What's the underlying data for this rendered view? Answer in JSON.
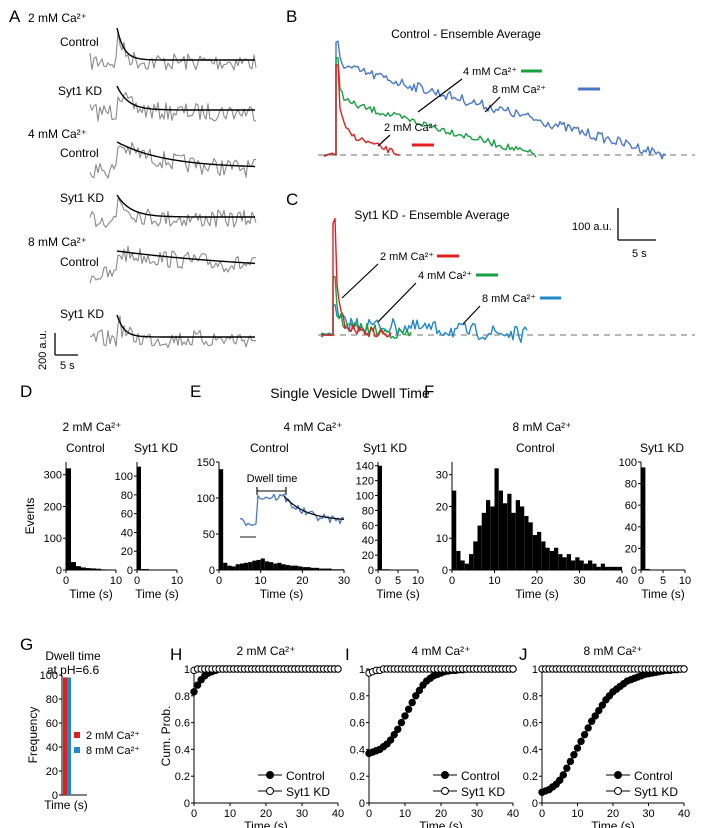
{
  "colors": {
    "trace": "#8a8a8a",
    "fit": "#000000",
    "ca2": "#e02020",
    "ca4": "#18a040",
    "ca8": "#4a78c8",
    "ca8_kd": "#1f88c8",
    "baseline": "#8c8c8c",
    "bar": "#000000"
  },
  "panel_labels": [
    "A",
    "B",
    "C",
    "D",
    "E",
    "F",
    "G",
    "H",
    "I",
    "J"
  ],
  "panel_a": {
    "groups": [
      {
        "condition": "2 mM Ca²⁺",
        "rows": [
          "Control",
          "Syt1 KD"
        ]
      },
      {
        "condition": "4 mM Ca²⁺",
        "rows": [
          "Control",
          "Syt1 KD"
        ]
      },
      {
        "condition": "8 mM Ca²⁺",
        "rows": [
          "Control",
          "Syt1 KD"
        ]
      }
    ],
    "scale_amp": "200 a.u.",
    "scale_time": "5 s"
  },
  "panel_b": {
    "title": "Control - Ensemble Average",
    "labels": {
      "ca2": "2 mM Ca²⁺",
      "ca4": "4 mM Ca²⁺",
      "ca8": "8 mM Ca²⁺"
    }
  },
  "panel_c": {
    "title": "Syt1 KD - Ensemble Average",
    "labels": {
      "ca2": "2 mM Ca²⁺",
      "ca4": "4 mM Ca²⁺",
      "ca8": "8 mM Ca²⁺"
    },
    "scale_amp": "100 a.u.",
    "scale_time": "5 s"
  },
  "section_title": "Single Vesicle Dwell Time",
  "conditions": {
    "ca2": "2 mM Ca²⁺",
    "ca4": "4 mM Ca²⁺",
    "ca8": "8 mM Ca²⁺"
  },
  "groups": {
    "control": "Control",
    "kd": "Syt1 KD"
  },
  "axis": {
    "events": "Events",
    "time": "Time (s)",
    "frequency": "Frequency",
    "cum_prob": "Cum. Prob."
  },
  "inset_label": "Dwell time",
  "panel_g": {
    "title_line1": "Dwell time",
    "title_line2": "at pH=6.6"
  },
  "chart_data": [
    {
      "id": "D-control",
      "type": "bar",
      "title": "2 mM Ca²⁺ Control",
      "xlabel": "Time (s)",
      "ylabel": "Events",
      "xlim": [
        0,
        10
      ],
      "ylim": [
        0,
        340
      ],
      "xticks": [
        0,
        10
      ],
      "yticks": [
        0,
        100,
        200,
        300
      ],
      "bin_width": 1,
      "bins": [
        0,
        1,
        2,
        3,
        4,
        5,
        6,
        7,
        8,
        9
      ],
      "values": [
        320,
        25,
        12,
        8,
        6,
        5,
        4,
        2,
        1,
        1
      ]
    },
    {
      "id": "D-kd",
      "type": "bar",
      "title": "2 mM Ca²⁺ Syt1 KD",
      "xlabel": "Time (s)",
      "ylabel": "",
      "xlim": [
        0,
        10
      ],
      "ylim": [
        0,
        115
      ],
      "xticks": [
        0,
        10
      ],
      "yticks": [
        0,
        20,
        40,
        60,
        80,
        100
      ],
      "bin_width": 1,
      "bins": [
        0,
        1,
        2,
        3
      ],
      "values": [
        110,
        1,
        1,
        0
      ]
    },
    {
      "id": "E-control",
      "type": "bar",
      "title": "4 mM Ca²⁺ Control",
      "xlabel": "Time (s)",
      "ylabel": "",
      "xlim": [
        0,
        30
      ],
      "ylim": [
        0,
        150
      ],
      "xticks": [
        0,
        10,
        20,
        30
      ],
      "yticks": [
        0,
        50,
        100,
        150
      ],
      "bin_width": 1,
      "bins": [
        0,
        1,
        2,
        3,
        4,
        5,
        6,
        7,
        8,
        9,
        10,
        11,
        12,
        13,
        14,
        15,
        16,
        17,
        18,
        19,
        20,
        21,
        22,
        23,
        24,
        25,
        26,
        27,
        28,
        29
      ],
      "values": [
        140,
        10,
        6,
        5,
        8,
        9,
        10,
        11,
        13,
        14,
        16,
        12,
        11,
        9,
        10,
        8,
        7,
        6,
        6,
        5,
        4,
        4,
        3,
        3,
        2,
        2,
        2,
        1,
        1,
        1
      ]
    },
    {
      "id": "E-kd",
      "type": "bar",
      "title": "4 mM Ca²⁺ Syt1 KD",
      "xlabel": "Time (s)",
      "ylabel": "",
      "xlim": [
        0,
        10
      ],
      "ylim": [
        0,
        145
      ],
      "xticks": [
        0,
        5,
        10
      ],
      "yticks": [
        0,
        20,
        40,
        60,
        80,
        100,
        120,
        140
      ],
      "bin_width": 1,
      "bins": [
        0,
        1,
        2,
        3
      ],
      "values": [
        140,
        1,
        1,
        0
      ]
    },
    {
      "id": "F-control",
      "type": "bar",
      "title": "8 mM Ca²⁺ Control",
      "xlabel": "Time (s)",
      "ylabel": "",
      "xlim": [
        0,
        40
      ],
      "ylim": [
        0,
        34
      ],
      "xticks": [
        0,
        10,
        20,
        30,
        40
      ],
      "yticks": [
        0,
        10,
        20,
        30
      ],
      "bin_width": 1,
      "bins": [
        0,
        1,
        2,
        3,
        4,
        5,
        6,
        7,
        8,
        9,
        10,
        11,
        12,
        13,
        14,
        15,
        16,
        17,
        18,
        19,
        20,
        21,
        22,
        23,
        24,
        25,
        26,
        27,
        28,
        29,
        30,
        31,
        32,
        33,
        34,
        35,
        36,
        37,
        38,
        39
      ],
      "values": [
        25,
        6,
        3,
        2,
        5,
        9,
        14,
        18,
        22,
        20,
        32,
        25,
        21,
        24,
        18,
        22,
        20,
        17,
        15,
        11,
        12,
        9,
        7,
        6,
        7,
        5,
        4,
        5,
        3,
        4,
        3,
        2,
        3,
        2,
        1,
        2,
        1,
        1,
        1,
        1
      ]
    },
    {
      "id": "F-kd",
      "type": "bar",
      "title": "8 mM Ca²⁺ Syt1 KD",
      "xlabel": "Time (s)",
      "ylabel": "",
      "xlim": [
        0,
        10
      ],
      "ylim": [
        0,
        100
      ],
      "xticks": [
        0,
        5,
        10
      ],
      "yticks": [
        0,
        20,
        40,
        60,
        80,
        100
      ],
      "bin_width": 1,
      "bins": [
        0,
        1,
        2,
        3
      ],
      "values": [
        95,
        1,
        0,
        0
      ]
    },
    {
      "id": "G",
      "type": "bar",
      "title": "Dwell time at pH=6.6",
      "xlabel": "Time (s)",
      "ylabel": "Frequency",
      "xlim": [
        0,
        1
      ],
      "ylim": [
        0,
        100
      ],
      "yticks": [
        0,
        20,
        40,
        60,
        80,
        100
      ],
      "series": [
        {
          "name": "2 mM Ca²⁺",
          "values": [
            98
          ]
        },
        {
          "name": "8 mM Ca²⁺",
          "values": [
            98
          ]
        }
      ]
    },
    {
      "id": "H",
      "type": "line",
      "title": "2 mM Ca²⁺",
      "xlabel": "Time (s)",
      "ylabel": "Cum. Prob.",
      "xlim": [
        0,
        40
      ],
      "ylim": [
        0,
        1.0
      ],
      "xticks": [
        0,
        10,
        20,
        30,
        40
      ],
      "yticks": [
        0,
        0.2,
        0.4,
        0.6,
        0.8,
        1.0
      ],
      "series": [
        {
          "name": "Control",
          "marker": "filled",
          "values": [
            0.83,
            0.88,
            0.92,
            0.95,
            0.97,
            0.98,
            0.99,
            1,
            1,
            1,
            1,
            1,
            1,
            1,
            1,
            1,
            1,
            1,
            1,
            1,
            1,
            1,
            1,
            1,
            1,
            1,
            1,
            1,
            1,
            1,
            1,
            1,
            1,
            1,
            1,
            1,
            1,
            1,
            1,
            1,
            1
          ]
        },
        {
          "name": "Syt1 KD",
          "marker": "open",
          "values": [
            0.99,
            1,
            1,
            1,
            1,
            1,
            1,
            1,
            1,
            1,
            1,
            1,
            1,
            1,
            1,
            1,
            1,
            1,
            1,
            1,
            1,
            1,
            1,
            1,
            1,
            1,
            1,
            1,
            1,
            1,
            1,
            1,
            1,
            1,
            1,
            1,
            1,
            1,
            1,
            1,
            1
          ]
        }
      ]
    },
    {
      "id": "I",
      "type": "line",
      "title": "4 mM Ca²⁺",
      "xlabel": "Time (s)",
      "ylabel": "",
      "xlim": [
        0,
        40
      ],
      "ylim": [
        0,
        1.0
      ],
      "xticks": [
        0,
        10,
        20,
        30,
        40
      ],
      "yticks": [
        0,
        0.2,
        0.4,
        0.6,
        0.8,
        1.0
      ],
      "series": [
        {
          "name": "Control",
          "marker": "filled",
          "values": [
            0.37,
            0.38,
            0.39,
            0.4,
            0.42,
            0.44,
            0.47,
            0.51,
            0.55,
            0.6,
            0.65,
            0.7,
            0.75,
            0.8,
            0.84,
            0.88,
            0.91,
            0.93,
            0.95,
            0.96,
            0.97,
            0.98,
            0.985,
            0.99,
            0.99,
            0.995,
            0.995,
            1,
            1,
            1,
            1,
            1,
            1,
            1,
            1,
            1,
            1,
            1,
            1,
            1,
            1
          ]
        },
        {
          "name": "Syt1 KD",
          "marker": "open",
          "values": [
            0.97,
            0.98,
            0.99,
            0.99,
            1,
            1,
            1,
            1,
            1,
            1,
            1,
            1,
            1,
            1,
            1,
            1,
            1,
            1,
            1,
            1,
            1,
            1,
            1,
            1,
            1,
            1,
            1,
            1,
            1,
            1,
            1,
            1,
            1,
            1,
            1,
            1,
            1,
            1,
            1,
            1,
            1
          ]
        }
      ]
    },
    {
      "id": "J",
      "type": "line",
      "title": "8 mM Ca²⁺",
      "xlabel": "Time (s)",
      "ylabel": "",
      "xlim": [
        0,
        40
      ],
      "ylim": [
        0,
        1.0
      ],
      "xticks": [
        0,
        10,
        20,
        30,
        40
      ],
      "yticks": [
        0,
        0.2,
        0.4,
        0.6,
        0.8,
        1.0
      ],
      "series": [
        {
          "name": "Control",
          "marker": "filled",
          "values": [
            0.08,
            0.09,
            0.1,
            0.12,
            0.14,
            0.17,
            0.21,
            0.26,
            0.31,
            0.36,
            0.41,
            0.46,
            0.51,
            0.56,
            0.61,
            0.65,
            0.69,
            0.73,
            0.77,
            0.8,
            0.83,
            0.85,
            0.87,
            0.89,
            0.91,
            0.92,
            0.93,
            0.94,
            0.95,
            0.96,
            0.965,
            0.97,
            0.975,
            0.98,
            0.985,
            0.99,
            0.99,
            0.995,
            0.995,
            1,
            1
          ]
        },
        {
          "name": "Syt1 KD",
          "marker": "open",
          "values": [
            1,
            1,
            1,
            1,
            1,
            1,
            1,
            1,
            1,
            1,
            1,
            1,
            1,
            1,
            1,
            1,
            1,
            1,
            1,
            1,
            1,
            1,
            1,
            1,
            1,
            1,
            1,
            1,
            1,
            1,
            1,
            1,
            1,
            1,
            1,
            1,
            1,
            1,
            1,
            1,
            1
          ]
        }
      ]
    }
  ]
}
